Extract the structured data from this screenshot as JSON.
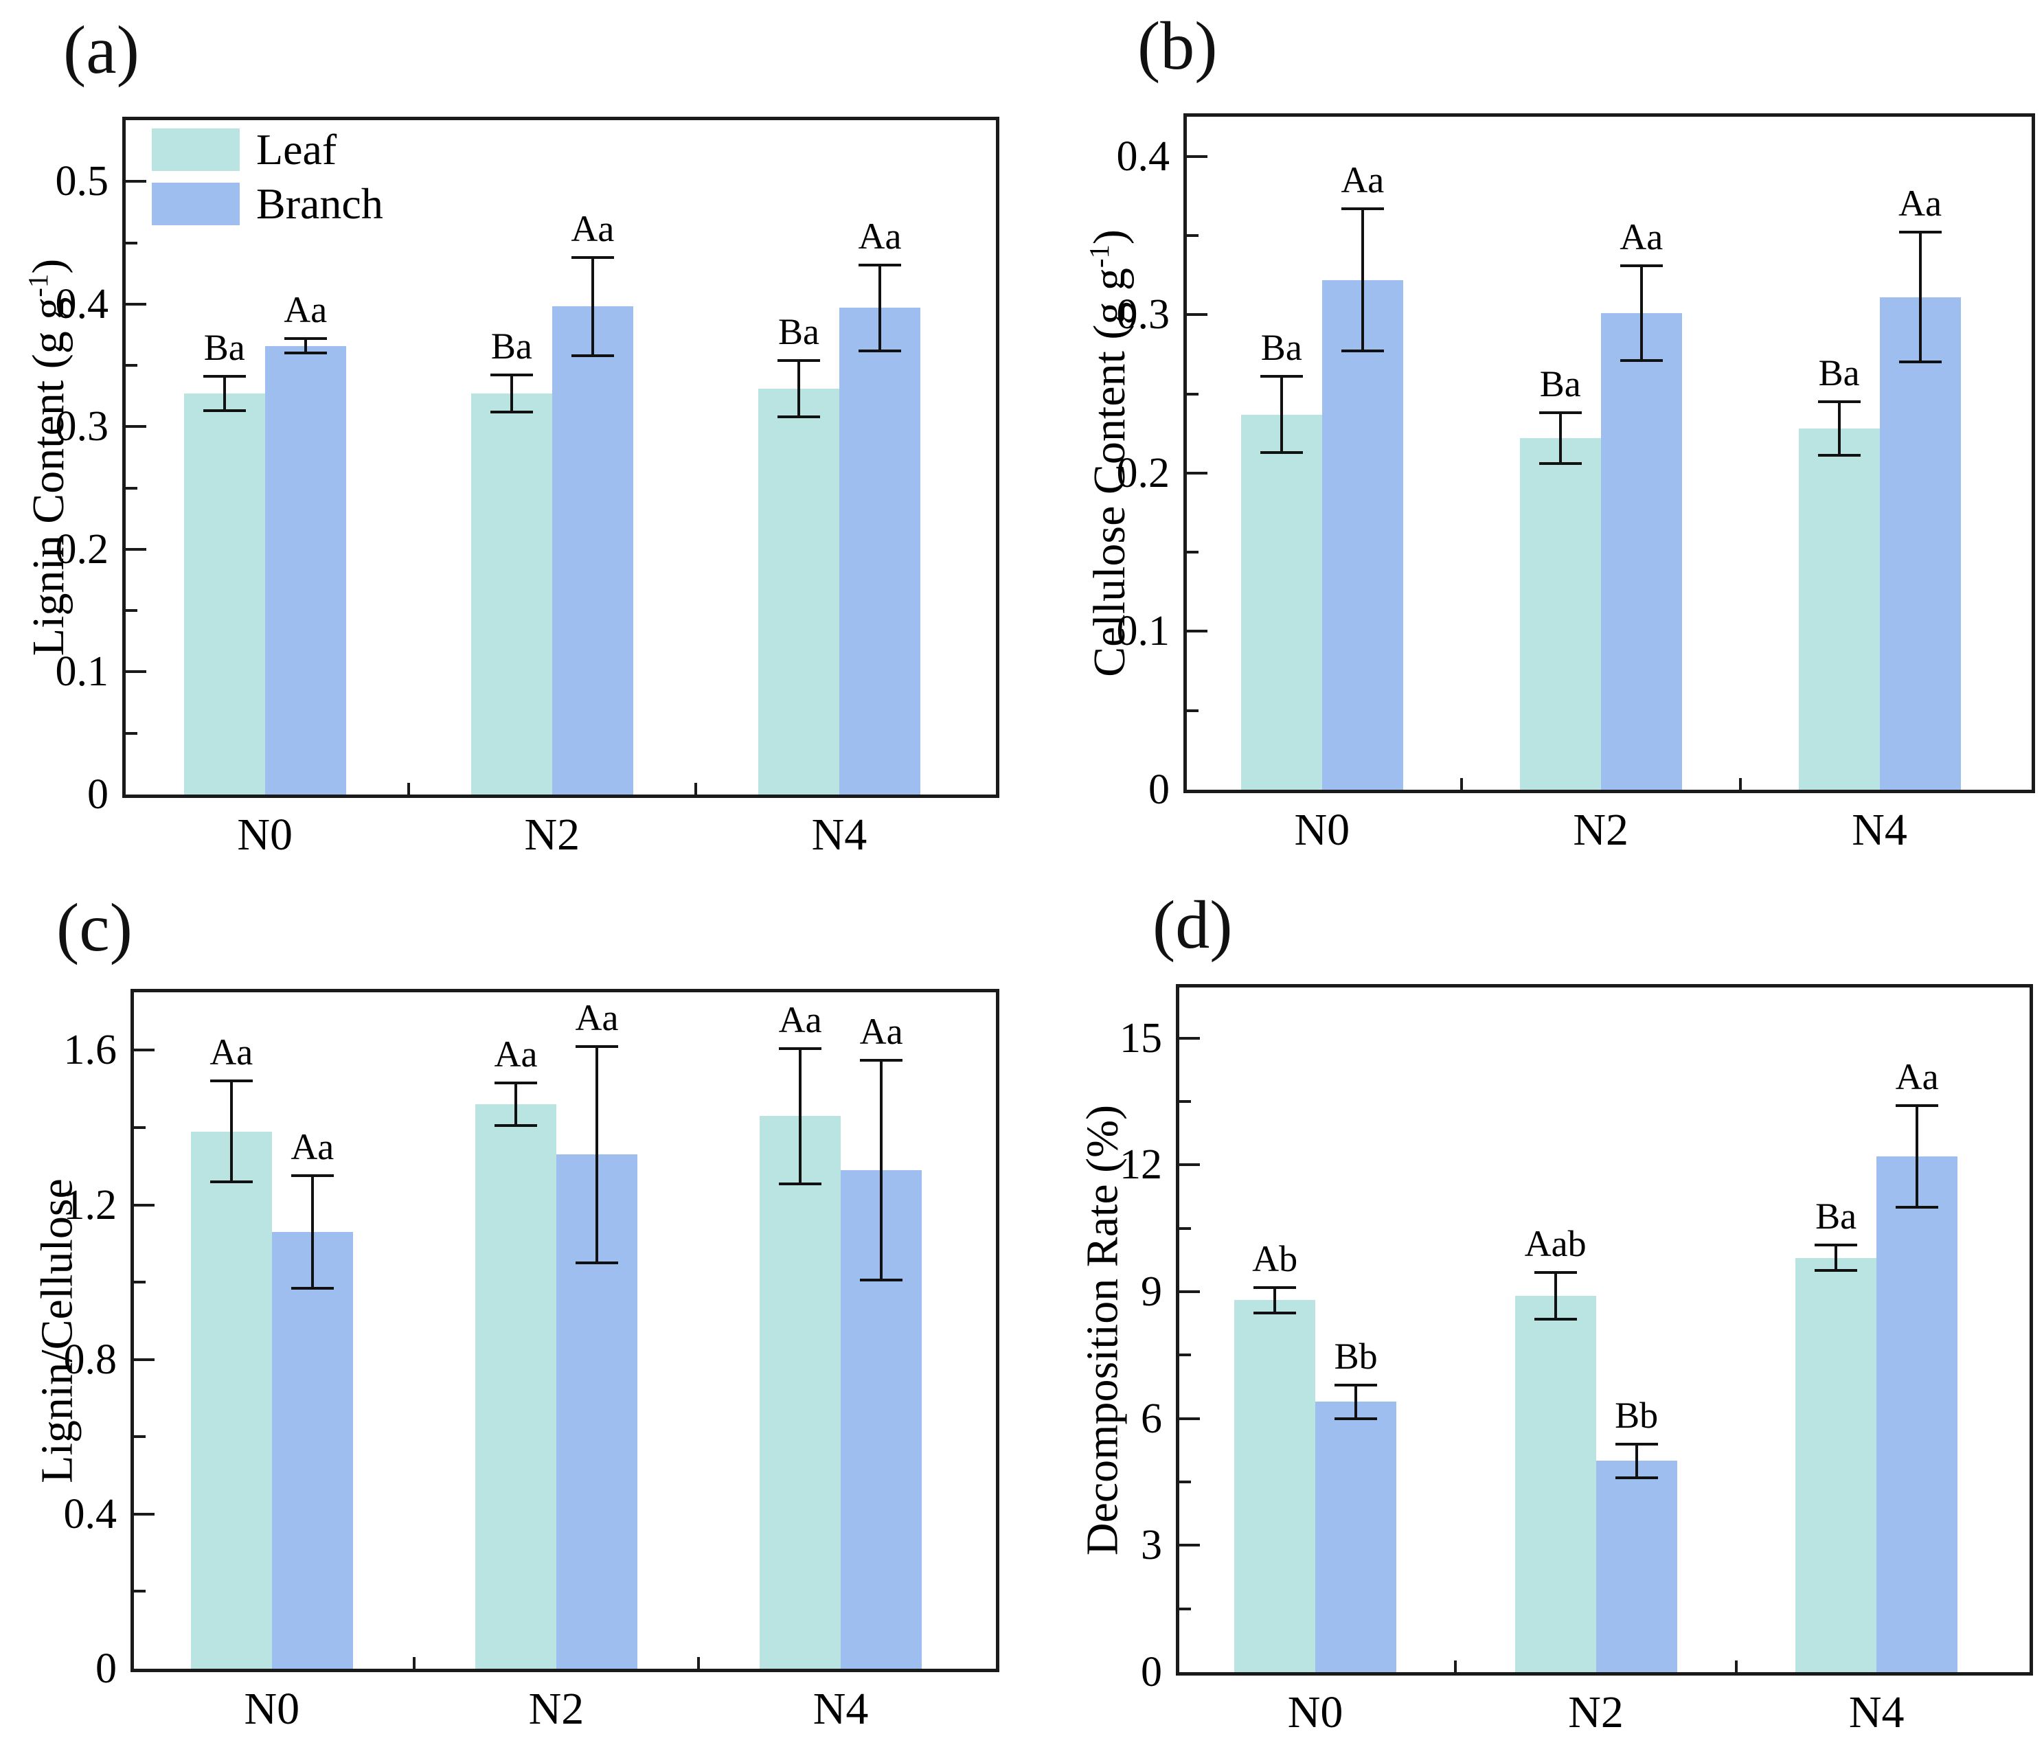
{
  "figure": {
    "background": "#ffffff",
    "axis_color": "#1a1a1a",
    "error_bar_color": "#111111",
    "description": "Four-panel grouped bar chart comparing Leaf and Branch litter chemistry and decomposition under nitrogen treatments N0, N2, N4"
  },
  "legend": {
    "position": "top-left inside panel (a)",
    "items": [
      {
        "label": "Leaf",
        "color": "#b9e4e2"
      },
      {
        "label": "Branch",
        "color": "#9ebef0"
      }
    ]
  },
  "chart_data": [
    {
      "id": "a",
      "type": "bar",
      "panel_label": "(a)",
      "ylabel": "Lignin Content (g g-1)",
      "ylabel_parts": {
        "prefix": "Lignin Content (g g",
        "sup": "-1",
        "suffix": ")"
      },
      "categories": [
        "N0",
        "N2",
        "N4"
      ],
      "ylim": [
        0,
        0.55
      ],
      "yticks": [
        0,
        0.1,
        0.2,
        0.3,
        0.4,
        0.5
      ],
      "minor_step": 0.05,
      "tick_decimals": 1,
      "grid": false,
      "show_legend": true,
      "series": [
        {
          "name": "Leaf",
          "color": "#b9e4e2",
          "values": [
            0.327,
            0.327,
            0.331
          ],
          "errors": [
            0.014,
            0.015,
            0.023
          ],
          "sig_labels": [
            "Ba",
            "Ba",
            "Ba"
          ]
        },
        {
          "name": "Branch",
          "color": "#9ebef0",
          "values": [
            0.366,
            0.398,
            0.397
          ],
          "errors": [
            0.006,
            0.04,
            0.035
          ],
          "sig_labels": [
            "Aa",
            "Aa",
            "Aa"
          ]
        }
      ]
    },
    {
      "id": "b",
      "type": "bar",
      "panel_label": "(b)",
      "ylabel": "Cellulose Content (g g-1)",
      "ylabel_parts": {
        "prefix": "Cellulose Content (g g",
        "sup": "-1",
        "suffix": ")"
      },
      "categories": [
        "N0",
        "N2",
        "N4"
      ],
      "ylim": [
        0,
        0.425
      ],
      "yticks": [
        0,
        0.1,
        0.2,
        0.3,
        0.4
      ],
      "minor_step": 0.05,
      "tick_decimals": 1,
      "grid": false,
      "show_legend": false,
      "series": [
        {
          "name": "Leaf",
          "color": "#b9e4e2",
          "values": [
            0.237,
            0.222,
            0.228
          ],
          "errors": [
            0.024,
            0.016,
            0.017
          ],
          "sig_labels": [
            "Ba",
            "Ba",
            "Ba"
          ]
        },
        {
          "name": "Branch",
          "color": "#9ebef0",
          "values": [
            0.322,
            0.301,
            0.311
          ],
          "errors": [
            0.045,
            0.03,
            0.041
          ],
          "sig_labels": [
            "Aa",
            "Aa",
            "Aa"
          ]
        }
      ]
    },
    {
      "id": "c",
      "type": "bar",
      "panel_label": "(c)",
      "ylabel": "Lignin/Cellulose",
      "ylabel_parts": {
        "prefix": "Lignin/Cellulose",
        "sup": "",
        "suffix": ""
      },
      "categories": [
        "N0",
        "N2",
        "N4"
      ],
      "ylim": [
        0,
        1.75
      ],
      "yticks": [
        0,
        0.4,
        0.8,
        1.2,
        1.6
      ],
      "minor_step": 0.2,
      "tick_decimals": 1,
      "grid": false,
      "show_legend": false,
      "series": [
        {
          "name": "Leaf",
          "color": "#b9e4e2",
          "values": [
            1.39,
            1.46,
            1.43
          ],
          "errors": [
            0.13,
            0.055,
            0.175
          ],
          "sig_labels": [
            "Aa",
            "Aa",
            "Aa"
          ]
        },
        {
          "name": "Branch",
          "color": "#9ebef0",
          "values": [
            1.13,
            1.33,
            1.29
          ],
          "errors": [
            0.145,
            0.28,
            0.285
          ],
          "sig_labels": [
            "Aa",
            "Aa",
            "Aa"
          ]
        }
      ]
    },
    {
      "id": "d",
      "type": "bar",
      "panel_label": "(d)",
      "ylabel": "Decomposition Rate (%)",
      "ylabel_parts": {
        "prefix": "Decomposition Rate (%)",
        "sup": "",
        "suffix": ""
      },
      "categories": [
        "N0",
        "N2",
        "N4"
      ],
      "ylim": [
        0,
        16.2
      ],
      "yticks": [
        0,
        3,
        6,
        9,
        12,
        15
      ],
      "minor_step": 1.5,
      "tick_decimals": 0,
      "grid": false,
      "show_legend": false,
      "series": [
        {
          "name": "Leaf",
          "color": "#b9e4e2",
          "values": [
            8.8,
            8.9,
            9.8
          ],
          "errors": [
            0.3,
            0.55,
            0.3
          ],
          "sig_labels": [
            "Ab",
            "Aab",
            "Ba"
          ]
        },
        {
          "name": "Branch",
          "color": "#9ebef0",
          "values": [
            6.4,
            5.0,
            12.2
          ],
          "errors": [
            0.4,
            0.4,
            1.2
          ],
          "sig_labels": [
            "Bb",
            "Bb",
            "Aa"
          ]
        }
      ]
    }
  ]
}
